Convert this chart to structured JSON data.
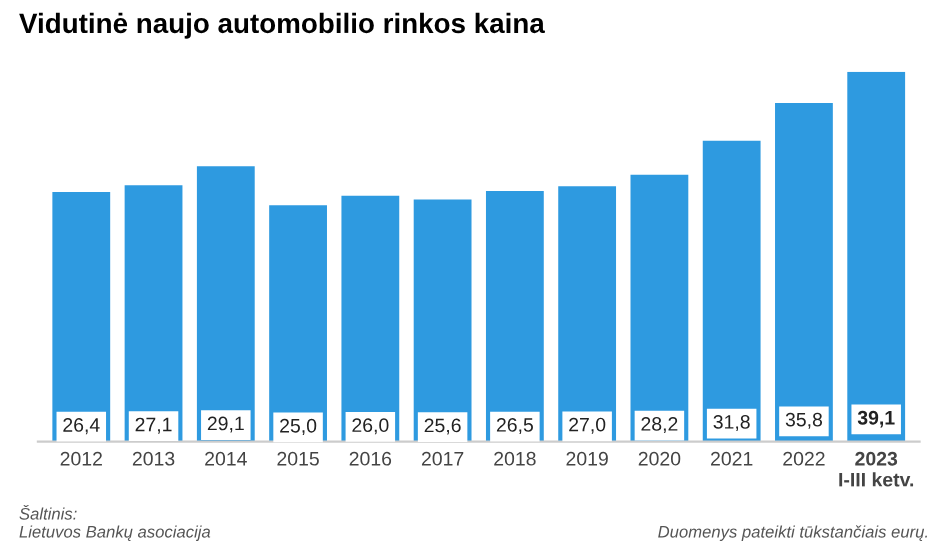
{
  "chart_data": {
    "type": "bar",
    "title": "Vidutinė naujo automobilio rinkos kaina",
    "categories": [
      "2012",
      "2013",
      "2014",
      "2015",
      "2016",
      "2017",
      "2018",
      "2019",
      "2020",
      "2021",
      "2022",
      "2023\nI-III ketv."
    ],
    "values": [
      26.4,
      27.1,
      29.1,
      25.0,
      26.0,
      25.6,
      26.5,
      27.0,
      28.2,
      31.8,
      35.8,
      39.1
    ],
    "value_labels": [
      "26,4",
      "27,1",
      "29,1",
      "25,0",
      "26,0",
      "25,6",
      "26,5",
      "27,0",
      "28,2",
      "31,8",
      "35,8",
      "39,1"
    ],
    "color": "#2e9ae0",
    "tick_labels": "x",
    "annotations": [
      "Šaltinis:\nLietuvos Bankų asociacija",
      "Duomenys pateikti tūkstančiais eurų."
    ]
  }
}
